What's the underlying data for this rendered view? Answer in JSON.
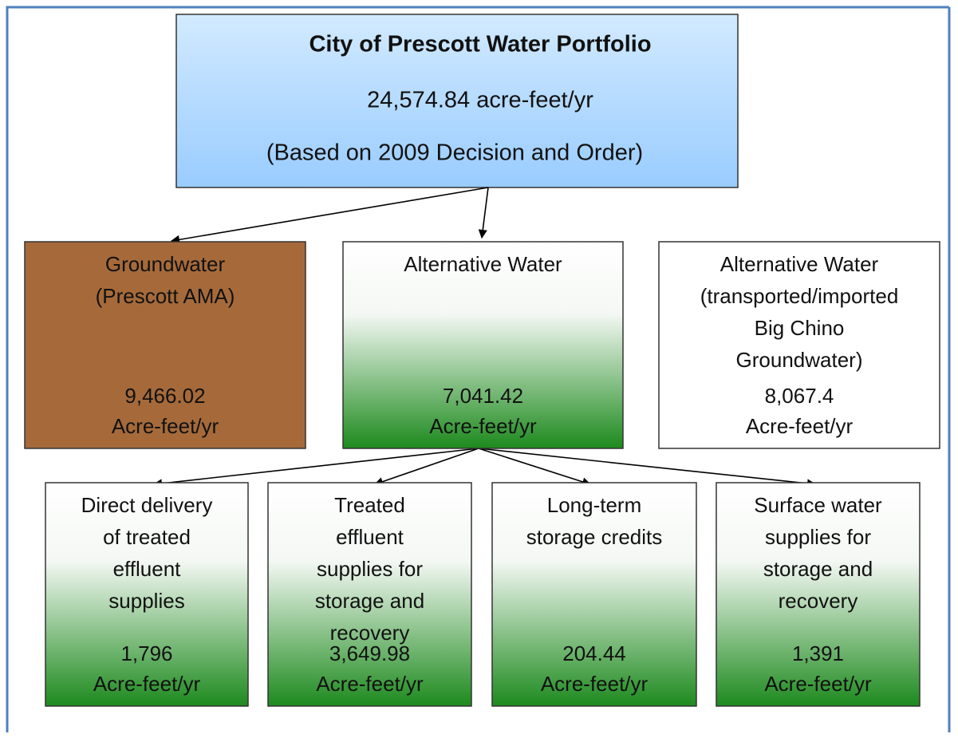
{
  "header": {
    "title": "City of Prescott Water Portfolio",
    "total": "24,574.84 acre-feet/yr",
    "basis": "(Based on 2009 Decision and Order)"
  },
  "nodes": [
    {
      "label": [
        "Groundwater",
        "(Prescott AMA)"
      ],
      "value": "9,466.02",
      "unit": "Acre-feet/yr"
    },
    {
      "label": [
        "Alternative Water"
      ],
      "value": "7,041.42",
      "unit": "Acre-feet/yr"
    },
    {
      "label": [
        "Alternative Water",
        "(transported/imported",
        "Big Chino",
        "Groundwater)"
      ],
      "value": "8,067.4",
      "unit": "Acre-feet/yr"
    },
    {
      "label": [
        "Direct delivery",
        "of treated",
        "effluent",
        "supplies"
      ],
      "value": "1,796",
      "unit": "Acre-feet/yr"
    },
    {
      "label": [
        "Treated",
        "effluent",
        "supplies for",
        "storage and",
        "recovery"
      ],
      "value": "3,649.98",
      "unit": "Acre-feet/yr"
    },
    {
      "label": [
        "Long-term",
        "storage credits"
      ],
      "value": "204.44",
      "unit": "Acre-feet/yr"
    },
    {
      "label": [
        "Surface water",
        "supplies for",
        "storage and",
        "recovery"
      ],
      "value": "1,391",
      "unit": "Acre-feet/yr"
    }
  ]
}
